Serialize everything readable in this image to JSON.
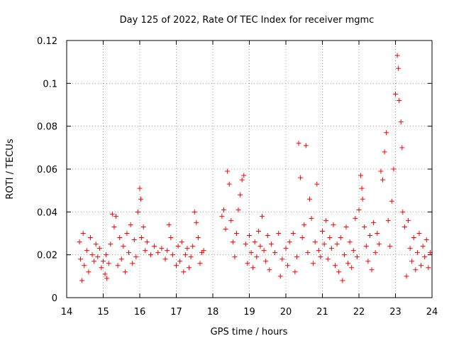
{
  "chart_data": {
    "type": "scatter",
    "title": "Day 125 of 2022, Rate Of TEC Index for receiver mgmc",
    "xlabel": "GPS time / hours",
    "ylabel": "ROTI / TECUs",
    "xlim": [
      14,
      24
    ],
    "ylim": [
      0,
      0.12
    ],
    "x_ticks": [
      "14",
      "15",
      "16",
      "17",
      "18",
      "19",
      "20",
      "21",
      "22",
      "23",
      "24"
    ],
    "y_ticks": [
      "0",
      "0.02",
      "0.04",
      "0.06",
      "0.08",
      "0.1",
      "0.12"
    ],
    "grid": true,
    "marker": "+",
    "series": [
      {
        "name": "ROTI",
        "color": "#ff0000",
        "points": [
          [
            14.35,
            0.026
          ],
          [
            14.38,
            0.018
          ],
          [
            14.42,
            0.008
          ],
          [
            14.45,
            0.03
          ],
          [
            14.48,
            0.015
          ],
          [
            14.55,
            0.022
          ],
          [
            14.6,
            0.012
          ],
          [
            14.65,
            0.028
          ],
          [
            14.7,
            0.02
          ],
          [
            14.75,
            0.017
          ],
          [
            14.8,
            0.025
          ],
          [
            14.85,
            0.019
          ],
          [
            14.9,
            0.023
          ],
          [
            14.95,
            0.014
          ],
          [
            15.0,
            0.017
          ],
          [
            15.05,
            0.011
          ],
          [
            15.08,
            0.02
          ],
          [
            15.1,
            0.009
          ],
          [
            15.15,
            0.016
          ],
          [
            15.2,
            0.025
          ],
          [
            15.25,
            0.039
          ],
          [
            15.3,
            0.033
          ],
          [
            15.35,
            0.038
          ],
          [
            15.4,
            0.015
          ],
          [
            15.45,
            0.028
          ],
          [
            15.5,
            0.018
          ],
          [
            15.55,
            0.024
          ],
          [
            15.6,
            0.012
          ],
          [
            15.65,
            0.03
          ],
          [
            15.7,
            0.021
          ],
          [
            15.75,
            0.034
          ],
          [
            15.8,
            0.016
          ],
          [
            15.85,
            0.027
          ],
          [
            15.9,
            0.019
          ],
          [
            15.95,
            0.04
          ],
          [
            16.0,
            0.051
          ],
          [
            16.03,
            0.046
          ],
          [
            16.05,
            0.028
          ],
          [
            16.1,
            0.033
          ],
          [
            16.15,
            0.022
          ],
          [
            16.2,
            0.026
          ],
          [
            16.3,
            0.02
          ],
          [
            16.4,
            0.024
          ],
          [
            16.5,
            0.021
          ],
          [
            16.6,
            0.023
          ],
          [
            16.7,
            0.018
          ],
          [
            16.75,
            0.022
          ],
          [
            16.8,
            0.034
          ],
          [
            16.85,
            0.028
          ],
          [
            16.9,
            0.02
          ],
          [
            17.0,
            0.015
          ],
          [
            17.05,
            0.024
          ],
          [
            17.1,
            0.017
          ],
          [
            17.15,
            0.026
          ],
          [
            17.2,
            0.012
          ],
          [
            17.25,
            0.02
          ],
          [
            17.3,
            0.023
          ],
          [
            17.35,
            0.014
          ],
          [
            17.4,
            0.019
          ],
          [
            17.45,
            0.024
          ],
          [
            17.5,
            0.04
          ],
          [
            17.55,
            0.035
          ],
          [
            17.6,
            0.028
          ],
          [
            17.65,
            0.016
          ],
          [
            17.7,
            0.021
          ],
          [
            17.75,
            0.022
          ],
          [
            18.25,
            0.038
          ],
          [
            18.3,
            0.041
          ],
          [
            18.35,
            0.032
          ],
          [
            18.4,
            0.059
          ],
          [
            18.45,
            0.053
          ],
          [
            18.5,
            0.036
          ],
          [
            18.55,
            0.026
          ],
          [
            18.6,
            0.019
          ],
          [
            18.65,
            0.03
          ],
          [
            18.7,
            0.041
          ],
          [
            18.75,
            0.048
          ],
          [
            18.8,
            0.055
          ],
          [
            18.85,
            0.057
          ],
          [
            18.9,
            0.025
          ],
          [
            18.95,
            0.016
          ],
          [
            19.0,
            0.029
          ],
          [
            19.05,
            0.021
          ],
          [
            19.1,
            0.014
          ],
          [
            19.15,
            0.026
          ],
          [
            19.2,
            0.019
          ],
          [
            19.25,
            0.031
          ],
          [
            19.3,
            0.024
          ],
          [
            19.35,
            0.038
          ],
          [
            19.4,
            0.022
          ],
          [
            19.45,
            0.017
          ],
          [
            19.5,
            0.029
          ],
          [
            19.55,
            0.013
          ],
          [
            19.6,
            0.025
          ],
          [
            19.7,
            0.021
          ],
          [
            19.8,
            0.03
          ],
          [
            19.85,
            0.01
          ],
          [
            19.9,
            0.018
          ],
          [
            20.0,
            0.023
          ],
          [
            20.05,
            0.015
          ],
          [
            20.1,
            0.026
          ],
          [
            20.2,
            0.03
          ],
          [
            20.25,
            0.012
          ],
          [
            20.3,
            0.019
          ],
          [
            20.35,
            0.072
          ],
          [
            20.4,
            0.056
          ],
          [
            20.45,
            0.028
          ],
          [
            20.5,
            0.034
          ],
          [
            20.55,
            0.071
          ],
          [
            20.6,
            0.021
          ],
          [
            20.65,
            0.046
          ],
          [
            20.7,
            0.037
          ],
          [
            20.75,
            0.016
          ],
          [
            20.8,
            0.026
          ],
          [
            20.85,
            0.053
          ],
          [
            20.9,
            0.022
          ],
          [
            20.95,
            0.019
          ],
          [
            21.0,
            0.031
          ],
          [
            21.05,
            0.025
          ],
          [
            21.1,
            0.036
          ],
          [
            21.15,
            0.018
          ],
          [
            21.2,
            0.028
          ],
          [
            21.25,
            0.023
          ],
          [
            21.3,
            0.034
          ],
          [
            21.35,
            0.015
          ],
          [
            21.4,
            0.025
          ],
          [
            21.45,
            0.012
          ],
          [
            21.5,
            0.028
          ],
          [
            21.55,
            0.008
          ],
          [
            21.6,
            0.02
          ],
          [
            21.65,
            0.033
          ],
          [
            21.7,
            0.016
          ],
          [
            21.75,
            0.026
          ],
          [
            21.8,
            0.014
          ],
          [
            21.85,
            0.022
          ],
          [
            21.9,
            0.037
          ],
          [
            21.95,
            0.019
          ],
          [
            22.0,
            0.041
          ],
          [
            22.05,
            0.057
          ],
          [
            22.08,
            0.051
          ],
          [
            22.1,
            0.046
          ],
          [
            22.15,
            0.033
          ],
          [
            22.2,
            0.024
          ],
          [
            22.25,
            0.017
          ],
          [
            22.3,
            0.029
          ],
          [
            22.35,
            0.013
          ],
          [
            22.4,
            0.035
          ],
          [
            22.45,
            0.021
          ],
          [
            22.5,
            0.03
          ],
          [
            22.55,
            0.025
          ],
          [
            22.6,
            0.059
          ],
          [
            22.65,
            0.055
          ],
          [
            22.7,
            0.068
          ],
          [
            22.75,
            0.077
          ],
          [
            22.8,
            0.036
          ],
          [
            22.85,
            0.024
          ],
          [
            22.9,
            0.045
          ],
          [
            22.95,
            0.06
          ],
          [
            23.0,
            0.095
          ],
          [
            23.05,
            0.113
          ],
          [
            23.08,
            0.107
          ],
          [
            23.1,
            0.092
          ],
          [
            23.15,
            0.082
          ],
          [
            23.18,
            0.07
          ],
          [
            23.2,
            0.04
          ],
          [
            23.25,
            0.033
          ],
          [
            23.3,
            0.01
          ],
          [
            23.35,
            0.036
          ],
          [
            23.4,
            0.023
          ],
          [
            23.45,
            0.017
          ],
          [
            23.5,
            0.028
          ],
          [
            23.55,
            0.013
          ],
          [
            23.6,
            0.021
          ],
          [
            23.65,
            0.03
          ],
          [
            23.7,
            0.015
          ],
          [
            23.75,
            0.024
          ],
          [
            23.8,
            0.019
          ],
          [
            23.85,
            0.027
          ],
          [
            23.9,
            0.014
          ],
          [
            23.95,
            0.021
          ]
        ]
      }
    ]
  }
}
